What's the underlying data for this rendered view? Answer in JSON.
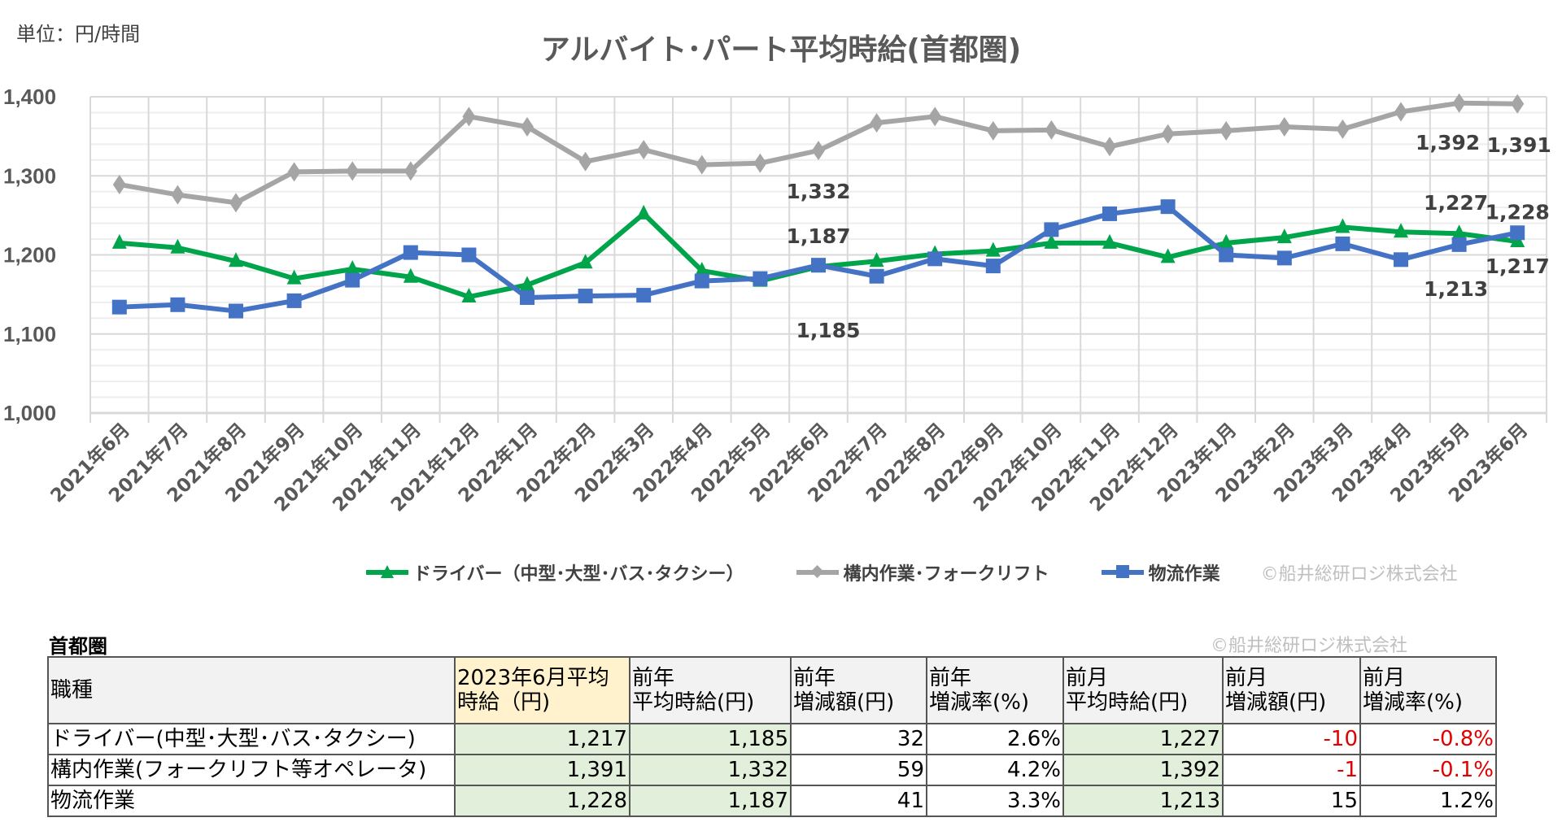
{
  "unit_label": "単位：円/時間",
  "chart_data": {
    "type": "line",
    "title": "アルバイト･パート平均時給(首都圏)",
    "xlabel": "",
    "ylabel": "",
    "ylim": [
      1000,
      1400
    ],
    "yticks": [
      "1,000",
      "1,100",
      "1,200",
      "1,300",
      "1,400"
    ],
    "grid": true,
    "legend_position": "bottom",
    "categories": [
      "2021年6月",
      "2021年7月",
      "2021年8月",
      "2021年9月",
      "2021年10月",
      "2021年11月",
      "2021年12月",
      "2022年1月",
      "2022年2月",
      "2022年3月",
      "2022年4月",
      "2022年5月",
      "2022年6月",
      "2022年7月",
      "2022年8月",
      "2022年9月",
      "2022年10月",
      "2022年11月",
      "2022年12月",
      "2023年1月",
      "2023年2月",
      "2023年3月",
      "2023年4月",
      "2023年5月",
      "2023年6月"
    ],
    "series": [
      {
        "name": "ドライバー（中型･大型･バス･タクシー）",
        "color": "#00a44a",
        "marker": "triangle",
        "values": [
          1215,
          1209,
          1192,
          1170,
          1182,
          1172,
          1147,
          1162,
          1190,
          1252,
          1180,
          1167,
          1185,
          1192,
          1201,
          1205,
          1215,
          1215,
          1197,
          1215,
          1222,
          1235,
          1229,
          1227,
          1217
        ],
        "labeled_indices": [
          12,
          23,
          24
        ]
      },
      {
        "name": "構内作業･フォークリフト",
        "color": "#a5a5a5",
        "marker": "diamond",
        "values": [
          1289,
          1276,
          1266,
          1305,
          1306,
          1306,
          1375,
          1362,
          1318,
          1333,
          1314,
          1316,
          1332,
          1367,
          1375,
          1357,
          1358,
          1337,
          1353,
          1357,
          1362,
          1359,
          1381,
          1392,
          1391
        ],
        "labeled_indices": [
          12,
          23,
          24
        ]
      },
      {
        "name": "物流作業",
        "color": "#4472c4",
        "marker": "square",
        "values": [
          1134,
          1137,
          1129,
          1142,
          1168,
          1203,
          1200,
          1146,
          1148,
          1149,
          1167,
          1170,
          1187,
          1173,
          1195,
          1186,
          1232,
          1252,
          1261,
          1200,
          1196,
          1214,
          1194,
          1213,
          1228
        ],
        "labeled_indices": [
          12,
          23,
          24
        ]
      }
    ],
    "annotation": "©船井総研ロジ株式会社"
  },
  "table": {
    "region": "首都圏",
    "watermark": "©船井総研ロジ株式会社",
    "headers": [
      [
        "職種"
      ],
      [
        "2023年6月平均",
        "時給（円)"
      ],
      [
        "前年",
        "平均時給(円)"
      ],
      [
        "前年",
        "増減額(円)"
      ],
      [
        "前年",
        "増減率(%)"
      ],
      [
        "前月",
        "平均時給(円)"
      ],
      [
        "前月",
        "増減額(円)"
      ],
      [
        "前月",
        "増減率(%)"
      ]
    ],
    "rows": [
      [
        "ドライバー(中型･大型･バス･タクシー)",
        "1,217",
        "1,185",
        "32",
        "2.6%",
        "1,227",
        "-10",
        "-0.8%"
      ],
      [
        "構内作業(フォークリフト等オペレータ)",
        "1,391",
        "1,332",
        "59",
        "4.2%",
        "1,392",
        "-1",
        "-0.1%"
      ],
      [
        "物流作業",
        "1,228",
        "1,187",
        "41",
        "3.3%",
        "1,213",
        "15",
        "1.2%"
      ]
    ]
  }
}
